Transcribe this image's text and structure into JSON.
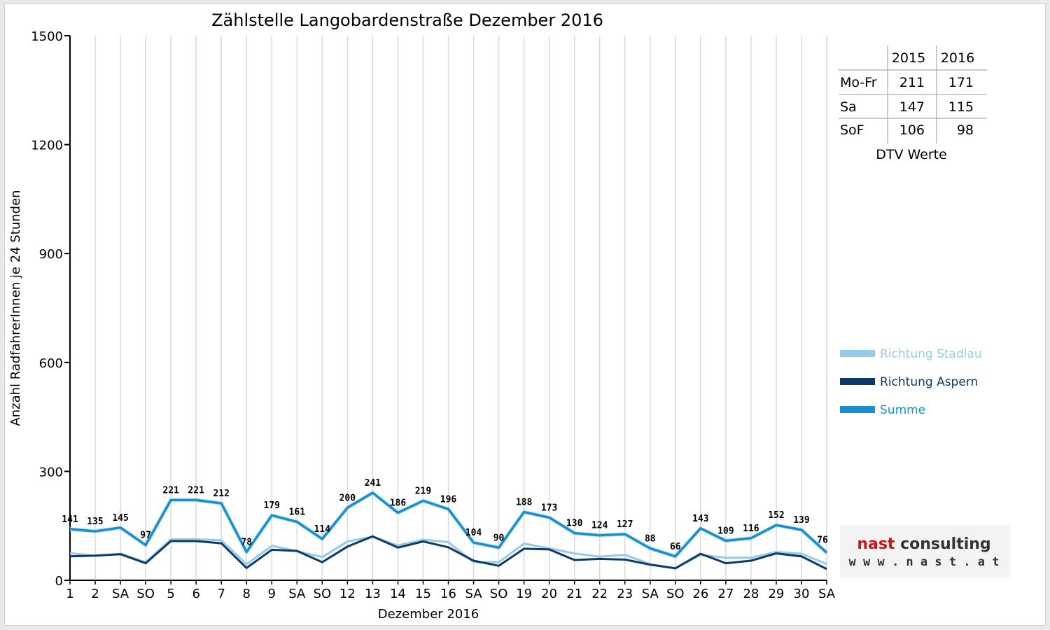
{
  "chart_data": {
    "type": "line",
    "title": "Zählstelle Langobardenstraße Dezember 2016",
    "xlabel": "Dezember 2016",
    "ylabel": "Anzahl RadfahrerInnen je 24 Stunden",
    "ylim": [
      0,
      1500
    ],
    "yticks": [
      "0",
      "300",
      "600",
      "900",
      "1200",
      "1500"
    ],
    "grid": true,
    "legend_position": "right",
    "categories": [
      "1",
      "2",
      "SA",
      "SO",
      "5",
      "6",
      "7",
      "8",
      "9",
      "SA",
      "SO",
      "12",
      "13",
      "14",
      "15",
      "16",
      "SA",
      "SO",
      "19",
      "20",
      "21",
      "22",
      "23",
      "SA",
      "SO",
      "26",
      "27",
      "28",
      "29",
      "30",
      "SA"
    ],
    "category_colors": [
      "#000000",
      "#000000",
      "#000000",
      "#e00000",
      "#000000",
      "#000000",
      "#000000",
      "#e00000",
      "#000000",
      "#000000",
      "#e00000",
      "#000000",
      "#000000",
      "#000000",
      "#000000",
      "#000000",
      "#000000",
      "#e00000",
      "#000000",
      "#000000",
      "#000000",
      "#000000",
      "#000000",
      "#000000",
      "#e00000",
      "#e00000",
      "#000000",
      "#000000",
      "#000000",
      "#000000",
      "#000000"
    ],
    "series": [
      {
        "name": "Richtung Stadlau",
        "color": "#95cbe8",
        "values": [
          75,
          67,
          73,
          50,
          113,
          113,
          110,
          44,
          95,
          80,
          64,
          107,
          120,
          96,
          112,
          105,
          50,
          50,
          101,
          88,
          74,
          65,
          70,
          45,
          33,
          70,
          62,
          62,
          78,
          73,
          45
        ]
      },
      {
        "name": "Richtung Aspern",
        "color": "#0d3a66",
        "values": [
          66,
          68,
          72,
          47,
          108,
          108,
          102,
          34,
          84,
          81,
          50,
          93,
          121,
          90,
          107,
          91,
          54,
          40,
          87,
          85,
          56,
          59,
          57,
          43,
          33,
          73,
          47,
          54,
          74,
          66,
          31
        ]
      },
      {
        "name": "Summe",
        "color": "#1a8fd0",
        "values": [
          141,
          135,
          145,
          97,
          221,
          221,
          212,
          78,
          179,
          161,
          114,
          200,
          241,
          186,
          219,
          196,
          104,
          90,
          188,
          173,
          130,
          124,
          127,
          88,
          66,
          143,
          109,
          116,
          152,
          139,
          76
        ]
      }
    ],
    "data_labels_series": "Summe"
  },
  "dtv_table": {
    "headers": [
      "",
      "2015",
      "2016"
    ],
    "rows": [
      {
        "label": "Mo-Fr",
        "v2015": "211",
        "v2016": "171"
      },
      {
        "label": "Sa",
        "v2015": "147",
        "v2016": "115"
      },
      {
        "label": "SoF",
        "v2015": "106",
        "v2016": "98"
      }
    ],
    "caption": "DTV Werte"
  },
  "logo": {
    "line1": "nast consulting",
    "line2": "w w w . n a s t . a t",
    "color": "#c0181e"
  }
}
